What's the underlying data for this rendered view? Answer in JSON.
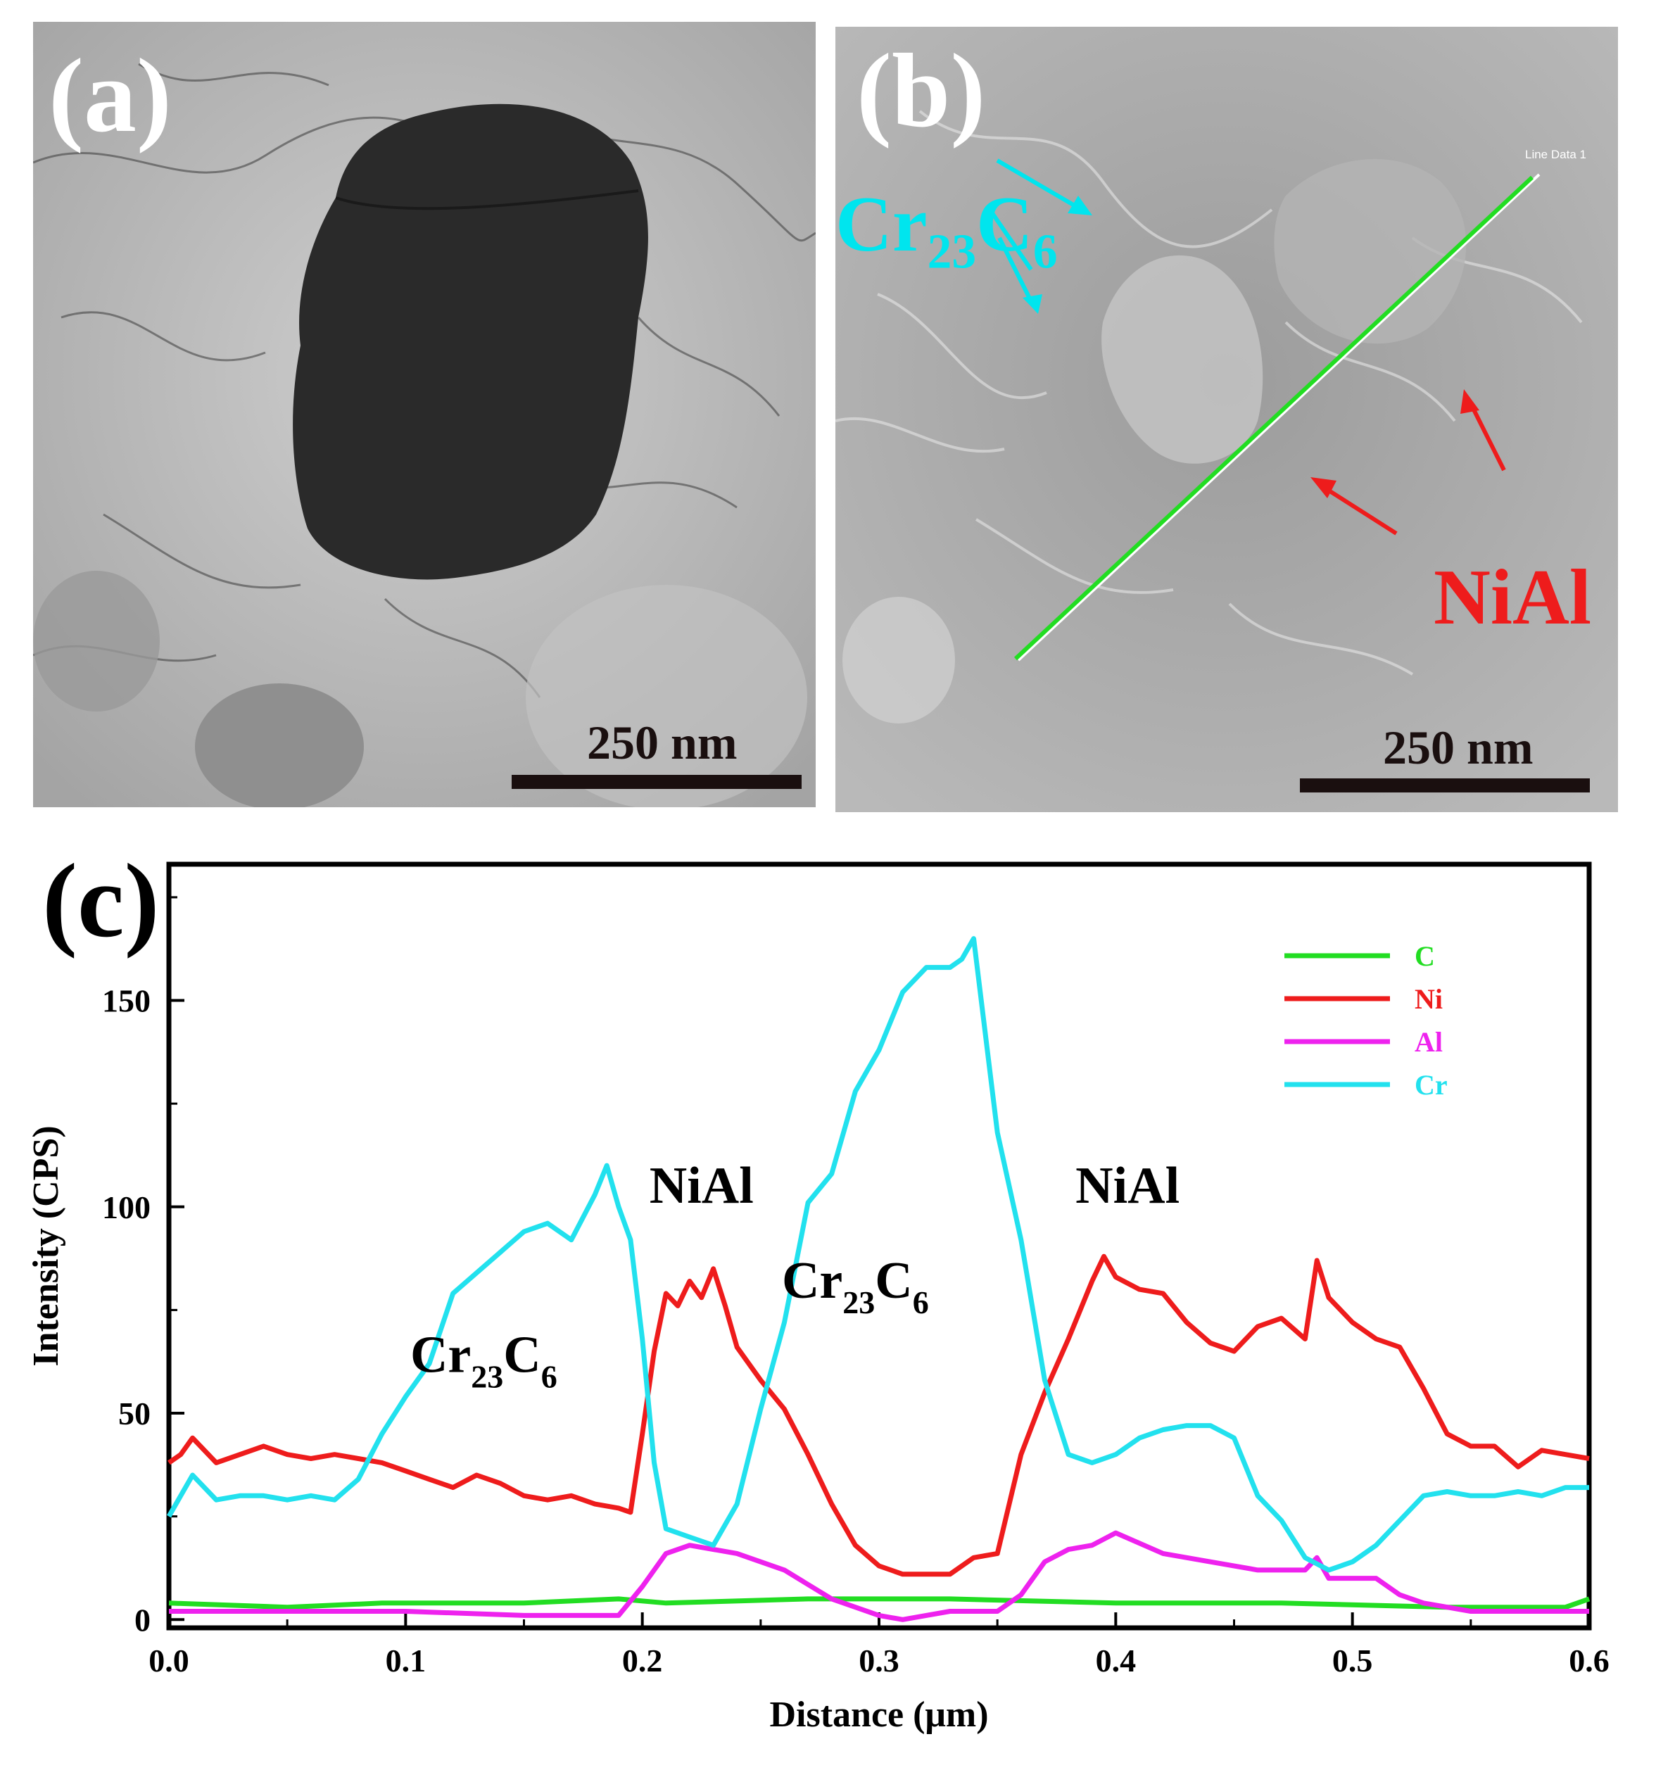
{
  "panel_a": {
    "label": "(a)",
    "scale_bar": "250 nm"
  },
  "panel_b": {
    "label": "(b)",
    "scale_bar": "250 nm",
    "line_label": "Line Data 1",
    "annotations": {
      "carbide": {
        "base": "Cr",
        "sub1": "23",
        "mid": "C",
        "sub2": "6",
        "color": "#00e5ee"
      },
      "nial": {
        "text": "NiAl",
        "color": "#ee1c1c"
      }
    }
  },
  "panel_c": {
    "label": "(c)"
  },
  "chart_data": {
    "type": "line",
    "xlabel": "Distance (μm)",
    "ylabel": "Intensity (CPS)",
    "xlim": [
      0.0,
      0.6
    ],
    "ylim": [
      -2,
      183
    ],
    "xticks": [
      "0.0",
      "0.1",
      "0.2",
      "0.3",
      "0.4",
      "0.5",
      "0.6"
    ],
    "yticks": [
      "0",
      "50",
      "100",
      "150"
    ],
    "legend_position": "top-right",
    "annotations": [
      {
        "text": "NiAl",
        "x": 0.225,
        "y": 101
      },
      {
        "text": "NiAl",
        "x": 0.405,
        "y": 101
      },
      {
        "text": "Cr23C6",
        "x": 0.133,
        "y": 60,
        "base": "Cr",
        "sub1": "23",
        "mid": "C",
        "sub2": "6"
      },
      {
        "text": "Cr23C6",
        "x": 0.29,
        "y": 78,
        "base": "Cr",
        "sub1": "23",
        "mid": "C",
        "sub2": "6"
      }
    ],
    "series": [
      {
        "name": "C",
        "color": "#22dd22",
        "x": [
          0,
          0.05,
          0.09,
          0.12,
          0.15,
          0.19,
          0.21,
          0.27,
          0.33,
          0.4,
          0.47,
          0.54,
          0.59,
          0.6
        ],
        "y": [
          4,
          3,
          4,
          4,
          4,
          5,
          4,
          5,
          5,
          4,
          4,
          3,
          3,
          5
        ]
      },
      {
        "name": "Ni",
        "color": "#ee1c1c",
        "x": [
          0,
          0.005,
          0.01,
          0.02,
          0.03,
          0.04,
          0.05,
          0.06,
          0.07,
          0.08,
          0.09,
          0.1,
          0.11,
          0.12,
          0.13,
          0.14,
          0.15,
          0.16,
          0.17,
          0.18,
          0.19,
          0.195,
          0.2,
          0.205,
          0.21,
          0.215,
          0.22,
          0.225,
          0.23,
          0.235,
          0.24,
          0.25,
          0.26,
          0.27,
          0.28,
          0.29,
          0.3,
          0.31,
          0.32,
          0.33,
          0.34,
          0.35,
          0.36,
          0.37,
          0.38,
          0.39,
          0.395,
          0.4,
          0.41,
          0.42,
          0.43,
          0.44,
          0.45,
          0.46,
          0.47,
          0.48,
          0.485,
          0.49,
          0.5,
          0.51,
          0.52,
          0.53,
          0.54,
          0.55,
          0.56,
          0.57,
          0.58,
          0.59,
          0.6
        ],
        "y": [
          38,
          40,
          44,
          38,
          40,
          42,
          40,
          39,
          40,
          39,
          38,
          36,
          34,
          32,
          35,
          33,
          30,
          29,
          30,
          28,
          27,
          26,
          45,
          65,
          79,
          76,
          82,
          78,
          85,
          76,
          66,
          58,
          51,
          40,
          28,
          18,
          13,
          11,
          11,
          11,
          15,
          16,
          40,
          55,
          68,
          82,
          88,
          83,
          80,
          79,
          72,
          67,
          65,
          71,
          73,
          68,
          87,
          78,
          72,
          68,
          66,
          56,
          45,
          42,
          42,
          37,
          41,
          40,
          39
        ]
      },
      {
        "name": "Al",
        "color": "#ee22ee",
        "x": [
          0,
          0.05,
          0.1,
          0.15,
          0.19,
          0.2,
          0.21,
          0.22,
          0.24,
          0.26,
          0.28,
          0.3,
          0.31,
          0.33,
          0.35,
          0.36,
          0.37,
          0.38,
          0.39,
          0.4,
          0.42,
          0.44,
          0.46,
          0.48,
          0.485,
          0.49,
          0.51,
          0.52,
          0.53,
          0.55,
          0.6
        ],
        "y": [
          2,
          2,
          2,
          1,
          1,
          8,
          16,
          18,
          16,
          12,
          5,
          1,
          0,
          2,
          2,
          6,
          14,
          17,
          18,
          21,
          16,
          14,
          12,
          12,
          15,
          10,
          10,
          6,
          4,
          2,
          2
        ]
      },
      {
        "name": "Cr",
        "color": "#22e1ee",
        "x": [
          0,
          0.005,
          0.01,
          0.02,
          0.03,
          0.04,
          0.05,
          0.06,
          0.07,
          0.08,
          0.09,
          0.1,
          0.11,
          0.12,
          0.13,
          0.14,
          0.15,
          0.16,
          0.17,
          0.18,
          0.185,
          0.19,
          0.195,
          0.2,
          0.205,
          0.21,
          0.22,
          0.23,
          0.24,
          0.25,
          0.26,
          0.27,
          0.28,
          0.29,
          0.3,
          0.31,
          0.32,
          0.33,
          0.335,
          0.34,
          0.35,
          0.36,
          0.37,
          0.38,
          0.39,
          0.4,
          0.41,
          0.42,
          0.43,
          0.44,
          0.45,
          0.46,
          0.47,
          0.48,
          0.49,
          0.5,
          0.51,
          0.52,
          0.53,
          0.54,
          0.55,
          0.56,
          0.57,
          0.58,
          0.59,
          0.6
        ],
        "y": [
          25,
          30,
          35,
          29,
          30,
          30,
          29,
          30,
          29,
          34,
          45,
          54,
          62,
          79,
          84,
          89,
          94,
          96,
          92,
          103,
          110,
          100,
          92,
          68,
          38,
          22,
          20,
          18,
          28,
          51,
          72,
          101,
          108,
          128,
          138,
          152,
          158,
          158,
          160,
          165,
          118,
          92,
          58,
          40,
          38,
          40,
          44,
          46,
          47,
          47,
          44,
          30,
          24,
          15,
          12,
          14,
          18,
          24,
          30,
          31,
          30,
          30,
          31,
          30,
          32,
          32
        ]
      }
    ]
  }
}
